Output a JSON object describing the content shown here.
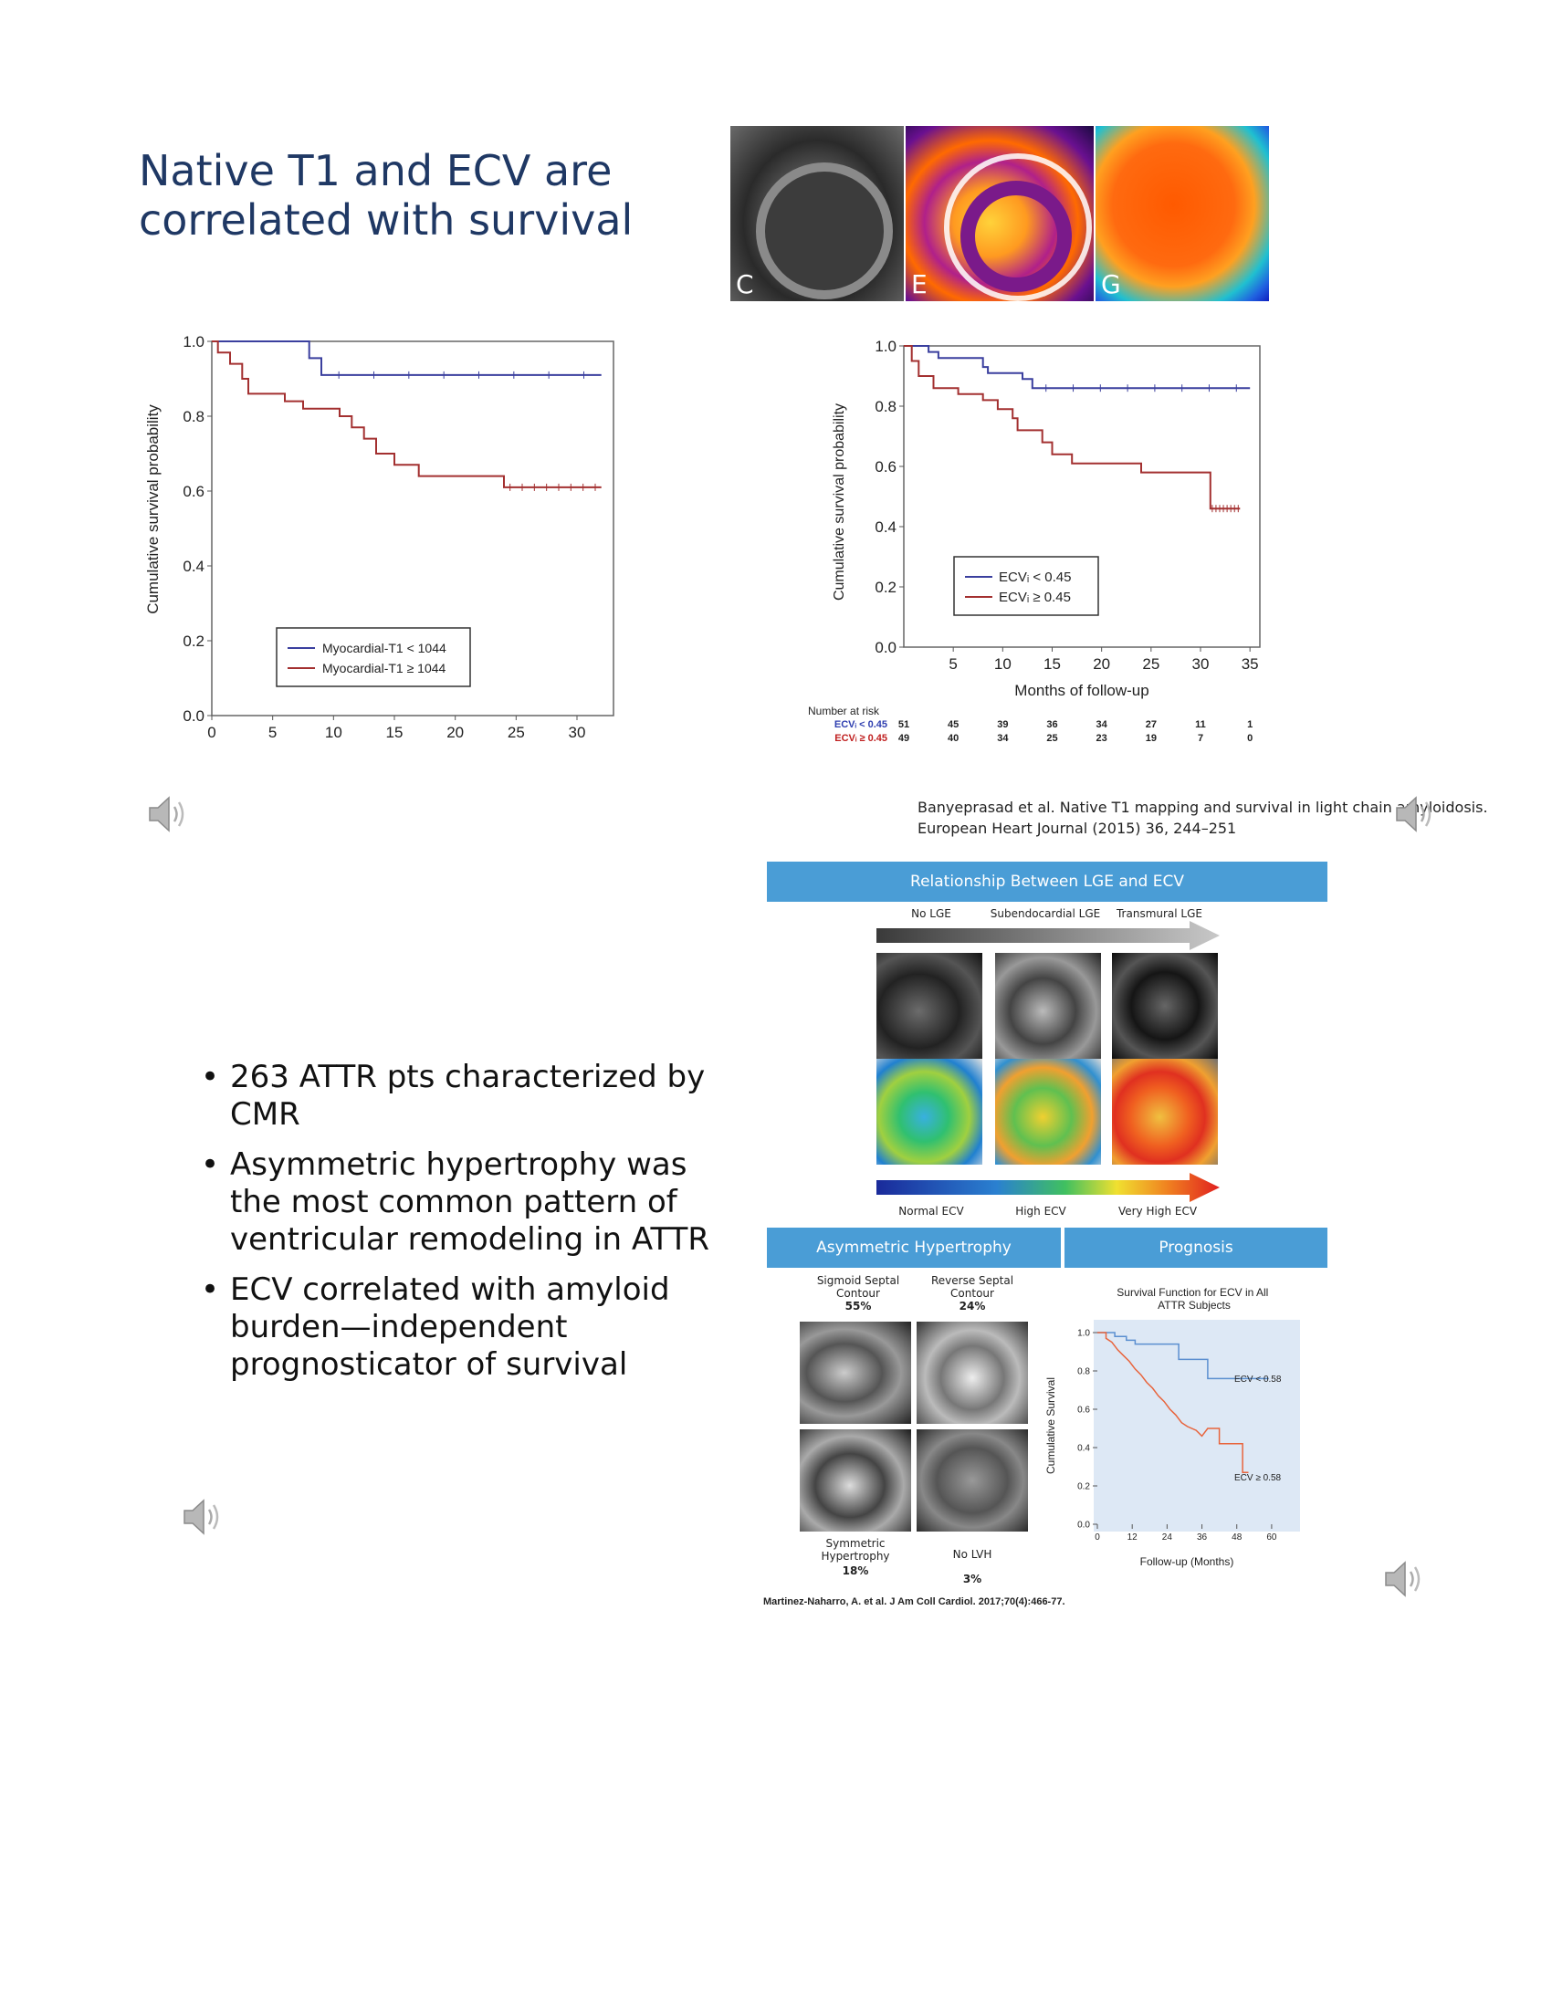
{
  "title": {
    "line1": "Native T1 and ECV are",
    "line2": "correlated with survival"
  },
  "mri_top": {
    "labels": [
      "C",
      "E",
      "G"
    ]
  },
  "chart_data": [
    {
      "type": "line",
      "title": "",
      "xlabel": "",
      "ylabel": "Cumulative survival probability",
      "xlim": [
        0,
        33
      ],
      "ylim": [
        0,
        1.0
      ],
      "x_ticks": [
        "0",
        "5",
        "10",
        "15",
        "20",
        "25",
        "30"
      ],
      "y_ticks": [
        "0.0",
        "0.2",
        "0.4",
        "0.6",
        "0.8",
        "1.0"
      ],
      "series": [
        {
          "name": "Myocardial-T1 < 1044",
          "color": "#3a3f9e",
          "points": [
            [
              0,
              1.0
            ],
            [
              8,
              1.0
            ],
            [
              8,
              0.955
            ],
            [
              9,
              0.955
            ],
            [
              9,
              0.91
            ],
            [
              32,
              0.91
            ]
          ]
        },
        {
          "name": "Myocardial-T1 ≥ 1044",
          "color": "#a33030",
          "points": [
            [
              0,
              1.0
            ],
            [
              0.5,
              1.0
            ],
            [
              0.5,
              0.97
            ],
            [
              1.5,
              0.97
            ],
            [
              1.5,
              0.94
            ],
            [
              2.5,
              0.94
            ],
            [
              2.5,
              0.9
            ],
            [
              3,
              0.9
            ],
            [
              3,
              0.86
            ],
            [
              6,
              0.86
            ],
            [
              6,
              0.84
            ],
            [
              7.5,
              0.84
            ],
            [
              7.5,
              0.82
            ],
            [
              10.5,
              0.82
            ],
            [
              10.5,
              0.8
            ],
            [
              11.5,
              0.8
            ],
            [
              11.5,
              0.77
            ],
            [
              12.5,
              0.77
            ],
            [
              12.5,
              0.74
            ],
            [
              13.5,
              0.74
            ],
            [
              13.5,
              0.7
            ],
            [
              15,
              0.7
            ],
            [
              15,
              0.67
            ],
            [
              17,
              0.67
            ],
            [
              17,
              0.64
            ],
            [
              24,
              0.64
            ],
            [
              24,
              0.61
            ],
            [
              32,
              0.61
            ]
          ]
        }
      ],
      "legend": [
        "Myocardial-T1 < 1044",
        "Myocardial-T1 ≥ 1044"
      ],
      "legend_position": "bottom-center"
    },
    {
      "type": "line",
      "title": "",
      "xlabel": "Months of follow-up",
      "ylabel": "Cumulative survival probability",
      "xlim": [
        0,
        36
      ],
      "ylim": [
        0,
        1.0
      ],
      "x_ticks": [
        "5",
        "10",
        "15",
        "20",
        "25",
        "30",
        "35"
      ],
      "y_ticks": [
        "0.0",
        "0.2",
        "0.4",
        "0.6",
        "0.8",
        "1.0"
      ],
      "series": [
        {
          "name": "ECVᵢ < 0.45",
          "color": "#3a3f9e",
          "points": [
            [
              0,
              1.0
            ],
            [
              2.5,
              1.0
            ],
            [
              2.5,
              0.98
            ],
            [
              3.5,
              0.98
            ],
            [
              3.5,
              0.96
            ],
            [
              8,
              0.96
            ],
            [
              8,
              0.93
            ],
            [
              8.5,
              0.93
            ],
            [
              8.5,
              0.91
            ],
            [
              12,
              0.91
            ],
            [
              12,
              0.89
            ],
            [
              13,
              0.89
            ],
            [
              13,
              0.86
            ],
            [
              35,
              0.86
            ]
          ]
        },
        {
          "name": "ECVᵢ ≥ 0.45",
          "color": "#a33030",
          "points": [
            [
              0,
              1.0
            ],
            [
              0.8,
              1.0
            ],
            [
              0.8,
              0.95
            ],
            [
              1.5,
              0.95
            ],
            [
              1.5,
              0.9
            ],
            [
              3,
              0.9
            ],
            [
              3,
              0.86
            ],
            [
              5.5,
              0.86
            ],
            [
              5.5,
              0.84
            ],
            [
              8,
              0.84
            ],
            [
              8,
              0.82
            ],
            [
              9.5,
              0.82
            ],
            [
              9.5,
              0.79
            ],
            [
              11,
              0.79
            ],
            [
              11,
              0.76
            ],
            [
              11.5,
              0.76
            ],
            [
              11.5,
              0.72
            ],
            [
              14,
              0.72
            ],
            [
              14,
              0.68
            ],
            [
              15,
              0.68
            ],
            [
              15,
              0.64
            ],
            [
              17,
              0.64
            ],
            [
              17,
              0.61
            ],
            [
              24,
              0.61
            ],
            [
              24,
              0.58
            ],
            [
              31,
              0.58
            ],
            [
              31,
              0.46
            ],
            [
              34,
              0.46
            ]
          ]
        }
      ],
      "legend": [
        "ECVᵢ < 0.45",
        "ECVᵢ ≥ 0.45"
      ],
      "legend_position": "center-right",
      "risk_table": {
        "header": "Number at risk",
        "rows": [
          {
            "label": "ECVᵢ < 0.45",
            "values": [
              "51",
              "45",
              "39",
              "36",
              "34",
              "27",
              "11",
              "1"
            ],
            "color": "#2f3fb0"
          },
          {
            "label": "ECVᵢ ≥ 0.45",
            "values": [
              "49",
              "40",
              "34",
              "25",
              "23",
              "19",
              "7",
              "0"
            ],
            "color": "#c02020"
          }
        ]
      }
    },
    {
      "type": "line",
      "title": "Survival Function for ECV in All ATTR Subjects",
      "xlabel": "Follow-up (Months)",
      "ylabel": "Cumulative Survival",
      "xlim": [
        0,
        66
      ],
      "ylim": [
        0,
        1.0
      ],
      "x_ticks": [
        "0",
        "12",
        "24",
        "36",
        "48",
        "60"
      ],
      "y_ticks": [
        "0.0",
        "0.2",
        "0.4",
        "0.6",
        "0.8",
        "1.0"
      ],
      "series": [
        {
          "name": "ECV < 0.58",
          "color": "#5b8fd0",
          "points": [
            [
              0,
              1.0
            ],
            [
              6,
              1.0
            ],
            [
              6,
              0.98
            ],
            [
              10,
              0.98
            ],
            [
              10,
              0.96
            ],
            [
              13,
              0.96
            ],
            [
              13,
              0.94
            ],
            [
              28,
              0.94
            ],
            [
              28,
              0.86
            ],
            [
              38,
              0.86
            ],
            [
              38,
              0.76
            ],
            [
              59,
              0.76
            ]
          ]
        },
        {
          "name": "ECV ≥ 0.58",
          "color": "#e8643c",
          "points": [
            [
              0,
              1.0
            ],
            [
              3,
              1.0
            ],
            [
              3,
              0.97
            ],
            [
              5,
              0.95
            ],
            [
              7,
              0.91
            ],
            [
              9,
              0.88
            ],
            [
              11,
              0.85
            ],
            [
              13,
              0.81
            ],
            [
              15,
              0.78
            ],
            [
              17,
              0.74
            ],
            [
              19,
              0.71
            ],
            [
              21,
              0.67
            ],
            [
              23,
              0.64
            ],
            [
              25,
              0.6
            ],
            [
              27,
              0.57
            ],
            [
              29,
              0.53
            ],
            [
              31,
              0.51
            ],
            [
              34,
              0.49
            ],
            [
              36,
              0.46
            ],
            [
              38,
              0.5
            ],
            [
              42,
              0.5
            ],
            [
              42,
              0.42
            ],
            [
              50,
              0.42
            ],
            [
              50,
              0.27
            ],
            [
              52,
              0.27
            ]
          ]
        }
      ],
      "legend": [
        "ECV < 0.58",
        "ECV ≥ 0.58"
      ],
      "legend_position": "inline"
    }
  ],
  "citation_1": {
    "line1": "Banyeprasad et al. Native T1 mapping and survival in light chain amyloidosis.",
    "line2": "European Heart Journal (2015) 36, 244–251"
  },
  "bullets": [
    "263 ATTR pts characterized by CMR",
    "Asymmetric hypertrophy was the most common pattern of ventricular remodeling in ATTR",
    "ECV correlated with amyloid burden—independent prognosticator of survival"
  ],
  "figure": {
    "band_top": "Relationship Between LGE and ECV",
    "lge_labels": [
      "No LGE",
      "Subendocardial LGE",
      "Transmural LGE"
    ],
    "ecv_labels": [
      "Normal ECV",
      "High ECV",
      "Very High ECV"
    ],
    "band_left": "Asymmetric Hypertrophy",
    "band_right": "Prognosis",
    "pattern_top": [
      {
        "name": "Sigmoid Septal Contour",
        "pct": "55%"
      },
      {
        "name": "Reverse Septal Contour",
        "pct": "24%"
      }
    ],
    "pattern_bottom": [
      {
        "name": "Symmetric Hypertrophy",
        "pct": "18%"
      },
      {
        "name": "No LVH",
        "pct": "3%"
      }
    ]
  },
  "citation_2": "Martinez-Naharro, A. et al. J Am Coll Cardiol. 2017;70(4):466-77.",
  "colors": {
    "title": "#1f3864",
    "band": "#4a9dd6",
    "blue_series": "#3a3f9e",
    "red_series": "#a33030"
  }
}
